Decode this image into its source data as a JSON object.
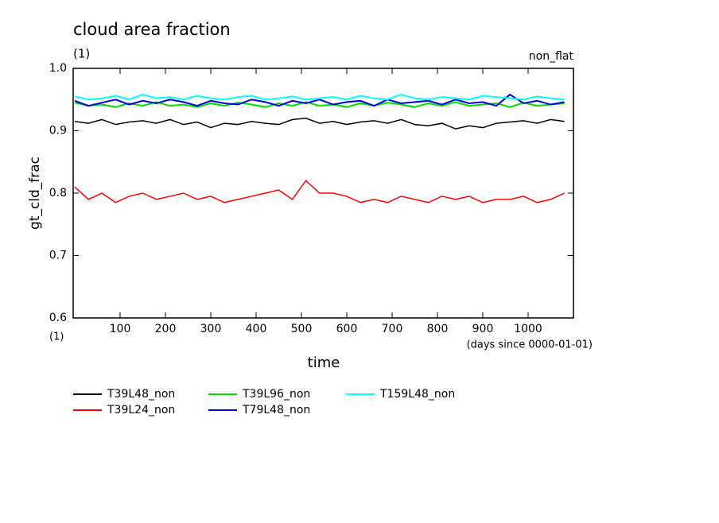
{
  "chart_data": {
    "type": "line",
    "title": "cloud area fraction",
    "subtitle": "(1)",
    "annotation": "non_flat",
    "y_label": "gt_cld_frac",
    "y_unit": "(1)",
    "x_label": "time",
    "x_unit": "(days since 0000-01-01)",
    "x": [
      0,
      30,
      60,
      90,
      120,
      150,
      180,
      210,
      240,
      270,
      300,
      330,
      360,
      390,
      420,
      450,
      480,
      510,
      540,
      570,
      600,
      630,
      660,
      690,
      720,
      750,
      780,
      810,
      840,
      870,
      900,
      930,
      960,
      990,
      1020,
      1050,
      1080
    ],
    "series": [
      {
        "name": "T39L48_non",
        "color": "#000000",
        "values": [
          0.915,
          0.912,
          0.918,
          0.91,
          0.914,
          0.916,
          0.912,
          0.918,
          0.91,
          0.914,
          0.905,
          0.912,
          0.91,
          0.915,
          0.912,
          0.91,
          0.918,
          0.92,
          0.912,
          0.915,
          0.91,
          0.914,
          0.916,
          0.912,
          0.918,
          0.91,
          0.908,
          0.912,
          0.903,
          0.908,
          0.905,
          0.912,
          0.914,
          0.916,
          0.912,
          0.918,
          0.915
        ]
      },
      {
        "name": "T39L24_non",
        "color": "#ff0000",
        "values": [
          0.81,
          0.79,
          0.8,
          0.785,
          0.795,
          0.8,
          0.79,
          0.795,
          0.8,
          0.79,
          0.795,
          0.785,
          0.79,
          0.795,
          0.8,
          0.805,
          0.79,
          0.82,
          0.8,
          0.8,
          0.795,
          0.785,
          0.79,
          0.785,
          0.795,
          0.79,
          0.785,
          0.795,
          0.79,
          0.795,
          0.785,
          0.79,
          0.79,
          0.795,
          0.785,
          0.79,
          0.8
        ]
      },
      {
        "name": "T39L96_non",
        "color": "#00dd00",
        "values": [
          0.945,
          0.94,
          0.942,
          0.938,
          0.944,
          0.94,
          0.946,
          0.94,
          0.942,
          0.938,
          0.944,
          0.94,
          0.945,
          0.942,
          0.938,
          0.944,
          0.94,
          0.946,
          0.94,
          0.942,
          0.938,
          0.944,
          0.94,
          0.945,
          0.942,
          0.938,
          0.944,
          0.94,
          0.946,
          0.94,
          0.942,
          0.944,
          0.938,
          0.945,
          0.94,
          0.942,
          0.944
        ]
      },
      {
        "name": "T79L48_non",
        "color": "#0000dd",
        "values": [
          0.948,
          0.94,
          0.945,
          0.95,
          0.942,
          0.948,
          0.944,
          0.95,
          0.946,
          0.94,
          0.948,
          0.944,
          0.942,
          0.95,
          0.946,
          0.94,
          0.948,
          0.944,
          0.95,
          0.942,
          0.946,
          0.948,
          0.94,
          0.95,
          0.944,
          0.946,
          0.948,
          0.942,
          0.95,
          0.944,
          0.946,
          0.94,
          0.958,
          0.944,
          0.948,
          0.942,
          0.946
        ]
      },
      {
        "name": "T159L48_non",
        "color": "#00ffff",
        "values": [
          0.955,
          0.95,
          0.952,
          0.956,
          0.95,
          0.958,
          0.952,
          0.954,
          0.95,
          0.956,
          0.952,
          0.95,
          0.954,
          0.956,
          0.95,
          0.952,
          0.955,
          0.95,
          0.952,
          0.954,
          0.95,
          0.956,
          0.952,
          0.95,
          0.958,
          0.952,
          0.95,
          0.954,
          0.952,
          0.95,
          0.956,
          0.954,
          0.952,
          0.95,
          0.955,
          0.952,
          0.95
        ]
      }
    ],
    "xlim": [
      0,
      1100
    ],
    "ylim": [
      0.6,
      1
    ],
    "xticks": [
      100,
      200,
      300,
      400,
      500,
      600,
      700,
      800,
      900,
      1000
    ],
    "yticks": [
      0.6,
      0.7,
      0.8,
      0.9,
      {
        "value": 1,
        "label": "1.0"
      }
    ],
    "grid": false
  }
}
